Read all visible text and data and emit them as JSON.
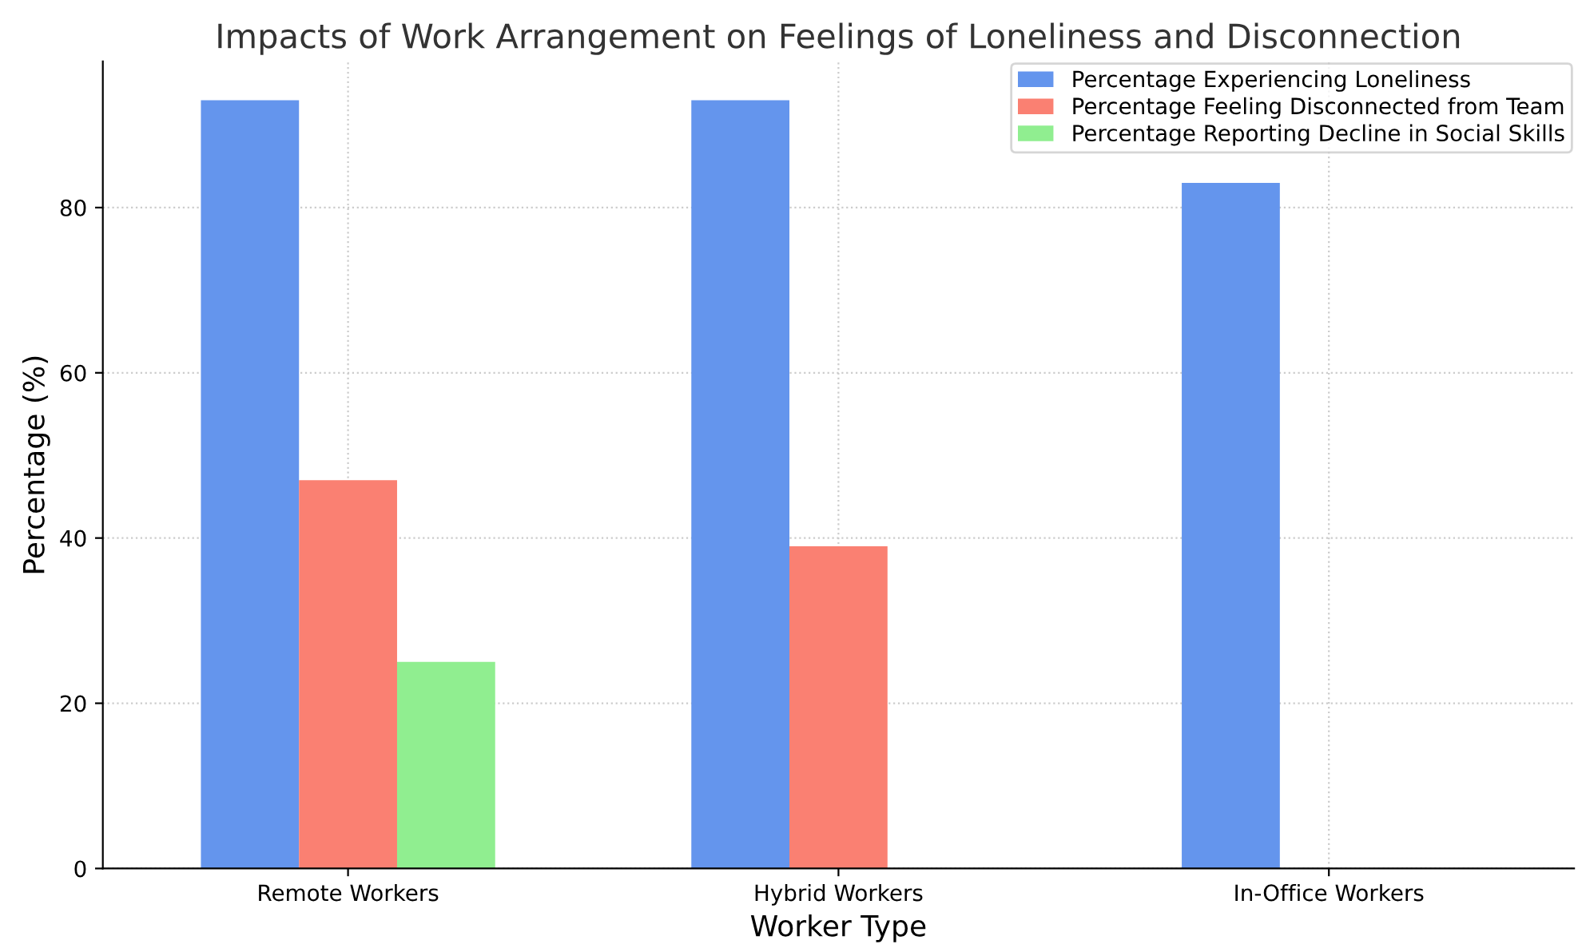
{
  "chart_data": {
    "type": "bar",
    "title": "Impacts of Work Arrangement on Feelings of Loneliness and Disconnection",
    "xlabel": "Worker Type",
    "ylabel": "Percentage (%)",
    "categories": [
      "Remote Workers",
      "Hybrid Workers",
      "In-Office Workers"
    ],
    "series": [
      {
        "name": "Percentage Experiencing Loneliness",
        "color": "#6495ed",
        "values": [
          93,
          93,
          83
        ]
      },
      {
        "name": "Percentage Feeling Disconnected from Team",
        "color": "#fa8072",
        "values": [
          47,
          39,
          0
        ]
      },
      {
        "name": "Percentage Reporting Decline in Social Skills",
        "color": "#90ee90",
        "values": [
          25,
          0,
          0
        ]
      }
    ],
    "ylim": [
      0,
      97.7
    ],
    "yticks": [
      0,
      20,
      40,
      60,
      80
    ],
    "grid": true,
    "legend": "top right"
  }
}
